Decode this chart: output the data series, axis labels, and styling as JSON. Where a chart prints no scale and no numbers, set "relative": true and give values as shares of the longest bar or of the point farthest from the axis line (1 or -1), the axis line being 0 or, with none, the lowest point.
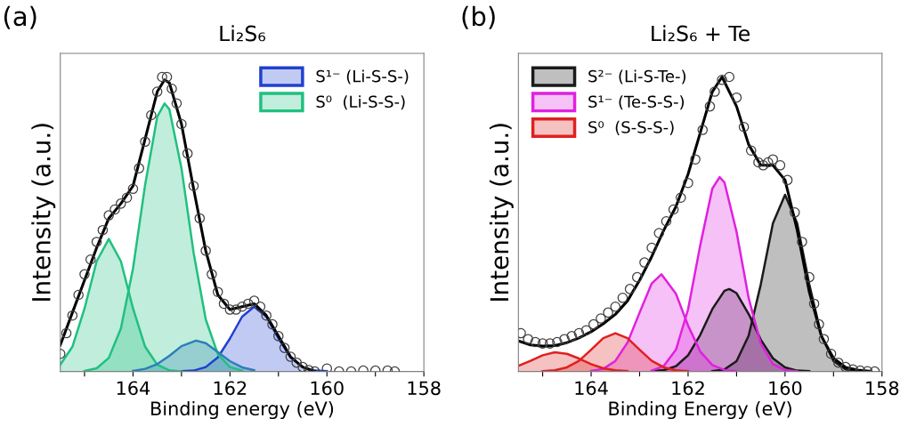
{
  "chart_data": [
    {
      "type": "area",
      "title": "Li₂S₆",
      "xlabel": "Binding energy (eV)",
      "ylabel": "Intensity (a.u.)",
      "annotations": [
        "(a)"
      ],
      "relative": true,
      "tick_labels": "x",
      "legend": "top right",
      "xlim": [
        165.5,
        158
      ],
      "xticks": [
        {
          "value": 165,
          "label": null
        },
        164,
        {
          "value": 163,
          "label": null
        },
        162,
        {
          "value": 161,
          "label": null
        },
        160,
        {
          "value": 159,
          "label": null
        },
        158
      ],
      "series": [
        {
          "name": "S¹⁻ (Li-S-S-)",
          "color": "#2040d0",
          "x": [
            163.0,
            162.75,
            162.5,
            162.25,
            162.0,
            161.75,
            161.5,
            161.25,
            161.0,
            160.75,
            160.5,
            160.25,
            160.0
          ],
          "values": [
            0.001,
            0.003,
            0.015,
            0.048,
            0.112,
            0.186,
            0.22,
            0.186,
            0.112,
            0.048,
            0.015,
            0.003,
            0.001
          ]
        },
        {
          "color": "#20c080",
          "x": [
            165.5,
            165.25,
            165.0,
            164.75,
            164.5,
            164.25,
            164.0,
            163.75,
            163.5,
            163.25,
            163.0
          ],
          "values": [
            0.023,
            0.084,
            0.214,
            0.374,
            0.45,
            0.374,
            0.214,
            0.084,
            0.023,
            0.004,
            0.0
          ]
        },
        {
          "name": "S⁰  (Li-S-S-)",
          "color": "#20c080",
          "x": [
            165.0,
            164.75,
            164.5,
            164.25,
            164.0,
            163.75,
            163.5,
            163.35,
            163.25,
            163.0,
            162.75,
            162.5,
            162.25,
            162.0,
            161.75
          ],
          "values": [
            0.002,
            0.011,
            0.046,
            0.146,
            0.35,
            0.634,
            0.865,
            0.91,
            0.89,
            0.69,
            0.403,
            0.177,
            0.059,
            0.015,
            0.003
          ]
        },
        {
          "color": "#2a80b8",
          "x": [
            164.0,
            163.75,
            163.5,
            163.25,
            163.0,
            162.7,
            162.5,
            162.25,
            162.0,
            161.75,
            161.5
          ],
          "values": [
            0.002,
            0.009,
            0.025,
            0.053,
            0.086,
            0.105,
            0.096,
            0.066,
            0.035,
            0.014,
            0.004
          ]
        },
        {
          "type": "scatter",
          "marker": "circle",
          "color": "#404040",
          "x": [
            165.5,
            165.375,
            165.25,
            165.125,
            165.0,
            164.875,
            164.75,
            164.625,
            164.5,
            164.375,
            164.25,
            164.125,
            164.0,
            163.875,
            163.75,
            163.625,
            163.5,
            163.4,
            163.3,
            163.2,
            163.1,
            163.0,
            162.875,
            162.75,
            162.625,
            162.5,
            162.375,
            162.25,
            162.125,
            162.0,
            161.875,
            161.75,
            161.625,
            161.5,
            161.375,
            161.25,
            161.125,
            161.0,
            160.875,
            160.75,
            160.625,
            160.5,
            160.375,
            160.25,
            160.0,
            159.75,
            159.5,
            159.25,
            159.0,
            158.75,
            158.6
          ],
          "values": [
            0.06,
            0.13,
            0.19,
            0.26,
            0.33,
            0.38,
            0.44,
            0.48,
            0.53,
            0.55,
            0.57,
            0.59,
            0.62,
            0.69,
            0.78,
            0.87,
            0.95,
            1.0,
            1.0,
            0.96,
            0.91,
            0.84,
            0.74,
            0.63,
            0.52,
            0.41,
            0.33,
            0.27,
            0.23,
            0.21,
            0.21,
            0.22,
            0.23,
            0.24,
            0.22,
            0.19,
            0.16,
            0.12,
            0.08,
            0.05,
            0.03,
            0.015,
            0.005,
            0.0,
            0.01,
            0.0,
            0.0,
            0.003,
            0.003,
            0.003,
            0.0
          ]
        },
        {
          "type": "line",
          "color": "#000000",
          "x": [
            165.5,
            165.25,
            165.0,
            164.75,
            164.5,
            164.25,
            164.0,
            163.75,
            163.5,
            163.35,
            163.25,
            163.0,
            162.75,
            162.5,
            162.25,
            162.0,
            161.75,
            161.5,
            161.25,
            161.0,
            160.75,
            160.5,
            160.25
          ],
          "values": [
            0.09,
            0.2,
            0.31,
            0.42,
            0.52,
            0.57,
            0.63,
            0.79,
            0.95,
            0.99,
            0.98,
            0.84,
            0.62,
            0.41,
            0.26,
            0.21,
            0.22,
            0.23,
            0.19,
            0.12,
            0.05,
            0.015,
            0.0
          ]
        }
      ]
    },
    {
      "type": "area",
      "title": "Li₂S₆ + Te",
      "xlabel": "Binding Energy (eV)",
      "ylabel": "Intensity (a.u.)",
      "annotations": [
        "(b)"
      ],
      "relative": true,
      "tick_labels": "x",
      "legend": "top left",
      "xlim": [
        165.5,
        158
      ],
      "xticks": [
        {
          "value": 165,
          "label": null
        },
        164,
        {
          "value": 163,
          "label": null
        },
        162,
        {
          "value": 161,
          "label": null
        },
        160,
        {
          "value": 159,
          "label": null
        },
        158
      ],
      "series": [
        {
          "name": "S²⁻ (Li-S-Te-)",
          "color": "#1a1a1a",
          "x": [
            161.5,
            161.25,
            161.0,
            160.75,
            160.5,
            160.25,
            160.0,
            159.75,
            159.5,
            159.25,
            159.0,
            158.75,
            158.5
          ],
          "values": [
            0.001,
            0.007,
            0.035,
            0.122,
            0.296,
            0.503,
            0.6,
            0.503,
            0.296,
            0.122,
            0.035,
            0.007,
            0.001
          ]
        },
        {
          "color": "#1a1a1a",
          "x": [
            162.75,
            162.5,
            162.25,
            162.0,
            161.75,
            161.5,
            161.25,
            161.15,
            161.0,
            160.75,
            160.5,
            160.25,
            160.0,
            159.75,
            159.5
          ],
          "values": [
            0.001,
            0.005,
            0.018,
            0.055,
            0.124,
            0.212,
            0.274,
            0.28,
            0.266,
            0.195,
            0.108,
            0.045,
            0.014,
            0.003,
            0.001
          ]
        },
        {
          "name": "S¹⁻ (Te-S-S-)",
          "color": "#e020e0",
          "x": [
            162.75,
            162.5,
            162.25,
            162.0,
            161.75,
            161.5,
            161.35,
            161.25,
            161.0,
            160.75,
            160.5,
            160.25,
            160.0,
            159.75
          ],
          "values": [
            0.003,
            0.019,
            0.074,
            0.211,
            0.428,
            0.621,
            0.66,
            0.642,
            0.474,
            0.249,
            0.094,
            0.025,
            0.005,
            0.001
          ]
        },
        {
          "color": "#e020e0",
          "x": [
            164.0,
            163.75,
            163.5,
            163.25,
            163.0,
            162.75,
            162.55,
            162.25,
            162.0,
            161.75,
            161.5,
            161.25,
            161.0
          ],
          "values": [
            0.002,
            0.009,
            0.036,
            0.098,
            0.2,
            0.299,
            0.33,
            0.264,
            0.156,
            0.068,
            0.022,
            0.005,
            0.001
          ]
        },
        {
          "name": "S⁰  (S-S-S-)",
          "color": "#e02020",
          "x": [
            165.0,
            164.75,
            164.5,
            164.25,
            164.0,
            163.75,
            163.5,
            163.25,
            163.0,
            162.75,
            162.5,
            162.25,
            162.0
          ],
          "values": [
            0.001,
            0.004,
            0.014,
            0.036,
            0.074,
            0.113,
            0.13,
            0.113,
            0.074,
            0.036,
            0.014,
            0.004,
            0.001
          ]
        },
        {
          "color": "#e02020",
          "x": [
            165.5,
            165.25,
            165.0,
            164.75,
            164.5,
            164.25,
            164.0,
            163.75,
            163.5,
            163.25
          ],
          "values": [
            0.019,
            0.036,
            0.055,
            0.065,
            0.06,
            0.044,
            0.025,
            0.011,
            0.004,
            0.001
          ]
        },
        {
          "type": "scatter",
          "marker": "circle",
          "color": "#404040",
          "x": [
            165.45,
            165.3,
            165.15,
            165.0,
            164.85,
            164.7,
            164.55,
            164.4,
            164.25,
            164.1,
            163.95,
            163.8,
            163.65,
            163.5,
            163.35,
            163.2,
            163.05,
            162.9,
            162.75,
            162.6,
            162.45,
            162.3,
            162.15,
            162.0,
            161.85,
            161.7,
            161.55,
            161.45,
            161.3,
            161.15,
            161.0,
            160.85,
            160.7,
            160.55,
            160.45,
            160.35,
            160.25,
            160.1,
            159.95,
            159.8,
            159.65,
            159.5,
            159.4,
            159.3,
            159.2,
            159.05,
            158.9,
            158.75,
            158.6,
            158.45,
            158.3,
            158.15
          ],
          "values": [
            0.13,
            0.11,
            0.1,
            0.095,
            0.095,
            0.1,
            0.11,
            0.12,
            0.13,
            0.14,
            0.16,
            0.18,
            0.2,
            0.22,
            0.25,
            0.28,
            0.32,
            0.37,
            0.42,
            0.47,
            0.51,
            0.55,
            0.59,
            0.64,
            0.72,
            0.82,
            0.9,
            0.95,
            0.99,
            1.0,
            0.93,
            0.83,
            0.75,
            0.71,
            0.7,
            0.71,
            0.72,
            0.7,
            0.65,
            0.54,
            0.44,
            0.32,
            0.23,
            0.16,
            0.11,
            0.06,
            0.03,
            0.015,
            0.007,
            0.003,
            0.001,
            0.0
          ]
        },
        {
          "type": "line",
          "color": "#000000",
          "x": [
            165.5,
            165.25,
            165.0,
            164.75,
            164.5,
            164.25,
            164.0,
            163.75,
            163.5,
            163.25,
            163.0,
            162.75,
            162.5,
            162.25,
            162.0,
            161.75,
            161.5,
            161.3,
            161.0,
            160.75,
            160.5,
            160.25,
            160.0,
            159.75,
            159.5,
            159.25,
            159.0,
            158.75,
            158.5,
            158.25
          ],
          "values": [
            0.104,
            0.09,
            0.086,
            0.088,
            0.098,
            0.114,
            0.135,
            0.162,
            0.194,
            0.24,
            0.31,
            0.39,
            0.48,
            0.56,
            0.67,
            0.81,
            0.95,
            1.0,
            0.9,
            0.77,
            0.7,
            0.7,
            0.65,
            0.48,
            0.27,
            0.12,
            0.045,
            0.014,
            0.005,
            0.001
          ]
        }
      ]
    }
  ]
}
